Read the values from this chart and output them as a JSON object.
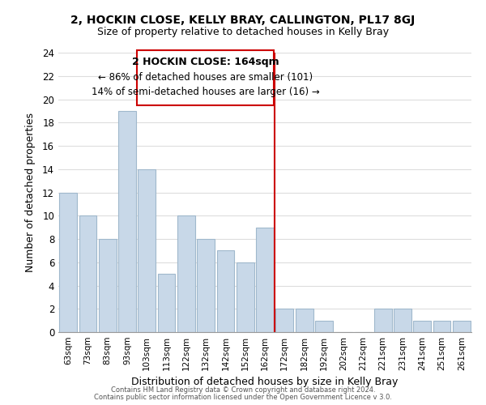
{
  "title": "2, HOCKIN CLOSE, KELLY BRAY, CALLINGTON, PL17 8GJ",
  "subtitle": "Size of property relative to detached houses in Kelly Bray",
  "xlabel": "Distribution of detached houses by size in Kelly Bray",
  "ylabel": "Number of detached properties",
  "bar_color": "#c8d8e8",
  "bar_edge_color": "#a0b8cc",
  "categories": [
    "63sqm",
    "73sqm",
    "83sqm",
    "93sqm",
    "103sqm",
    "113sqm",
    "122sqm",
    "132sqm",
    "142sqm",
    "152sqm",
    "162sqm",
    "172sqm",
    "182sqm",
    "192sqm",
    "202sqm",
    "212sqm",
    "221sqm",
    "231sqm",
    "241sqm",
    "251sqm",
    "261sqm"
  ],
  "values": [
    12,
    10,
    8,
    19,
    14,
    5,
    10,
    8,
    7,
    6,
    9,
    2,
    2,
    1,
    0,
    0,
    2,
    2,
    1,
    1,
    1
  ],
  "vline_x": 10.5,
  "vline_color": "#cc0000",
  "ylim": [
    0,
    24
  ],
  "yticks": [
    0,
    2,
    4,
    6,
    8,
    10,
    12,
    14,
    16,
    18,
    20,
    22,
    24
  ],
  "annotation_title": "2 HOCKIN CLOSE: 164sqm",
  "annotation_line1": "← 86% of detached houses are smaller (101)",
  "annotation_line2": "14% of semi-detached houses are larger (16) →",
  "footer1": "Contains HM Land Registry data © Crown copyright and database right 2024.",
  "footer2": "Contains public sector information licensed under the Open Government Licence v 3.0.",
  "background_color": "#ffffff",
  "grid_color": "#dddddd",
  "annotation_box_color": "#ffffff",
  "annotation_box_edge": "#cc0000"
}
